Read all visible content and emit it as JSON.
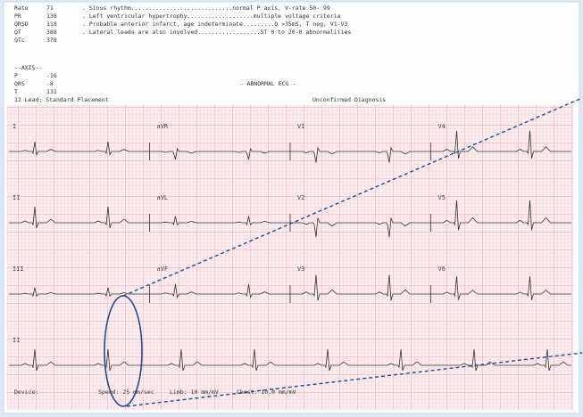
{
  "header": {
    "measurements": [
      {
        "label": "Rate",
        "value": "71"
      },
      {
        "label": "PR",
        "value": "138"
      },
      {
        "label": "QRSD",
        "value": "118"
      },
      {
        "label": "QT",
        "value": "388"
      },
      {
        "label": "QTc",
        "value": "378"
      }
    ],
    "interpretation": [
      ". Sinus rhythm.............................normal P axis, V-rate 50- 99",
      ". Left ventricular hypertrophy...................multiple voltage criteria",
      ". Probable anterior infarct, age indeterminate.........Q >35mS, T neg, V1-V3",
      ". Lateral leads are also involved..................ST 0 to 20-0 abnormalities"
    ],
    "axis_title": "--AXIS--",
    "axis": [
      {
        "label": "P",
        "value": "-16"
      },
      {
        "label": "QRS",
        "value": "-8"
      },
      {
        "label": "T",
        "value": "131"
      }
    ],
    "banner": "- ABNORMAL ECG -",
    "placement": "12 Lead; Standard Placement",
    "status": "Unconfirmed Diagnosis"
  },
  "leads": [
    [
      "I",
      "aVR",
      "V1",
      "V4"
    ],
    [
      "II",
      "aVL",
      "V2",
      "V5"
    ],
    [
      "III",
      "aVF",
      "V3",
      "V6"
    ],
    [
      "II"
    ]
  ],
  "footer": {
    "device": "Device:",
    "speed": "Speed: 25 mm/sec",
    "limb": "Limb: 10 mm/mV",
    "chest": "Chest: 10.0 mm/mV"
  }
}
